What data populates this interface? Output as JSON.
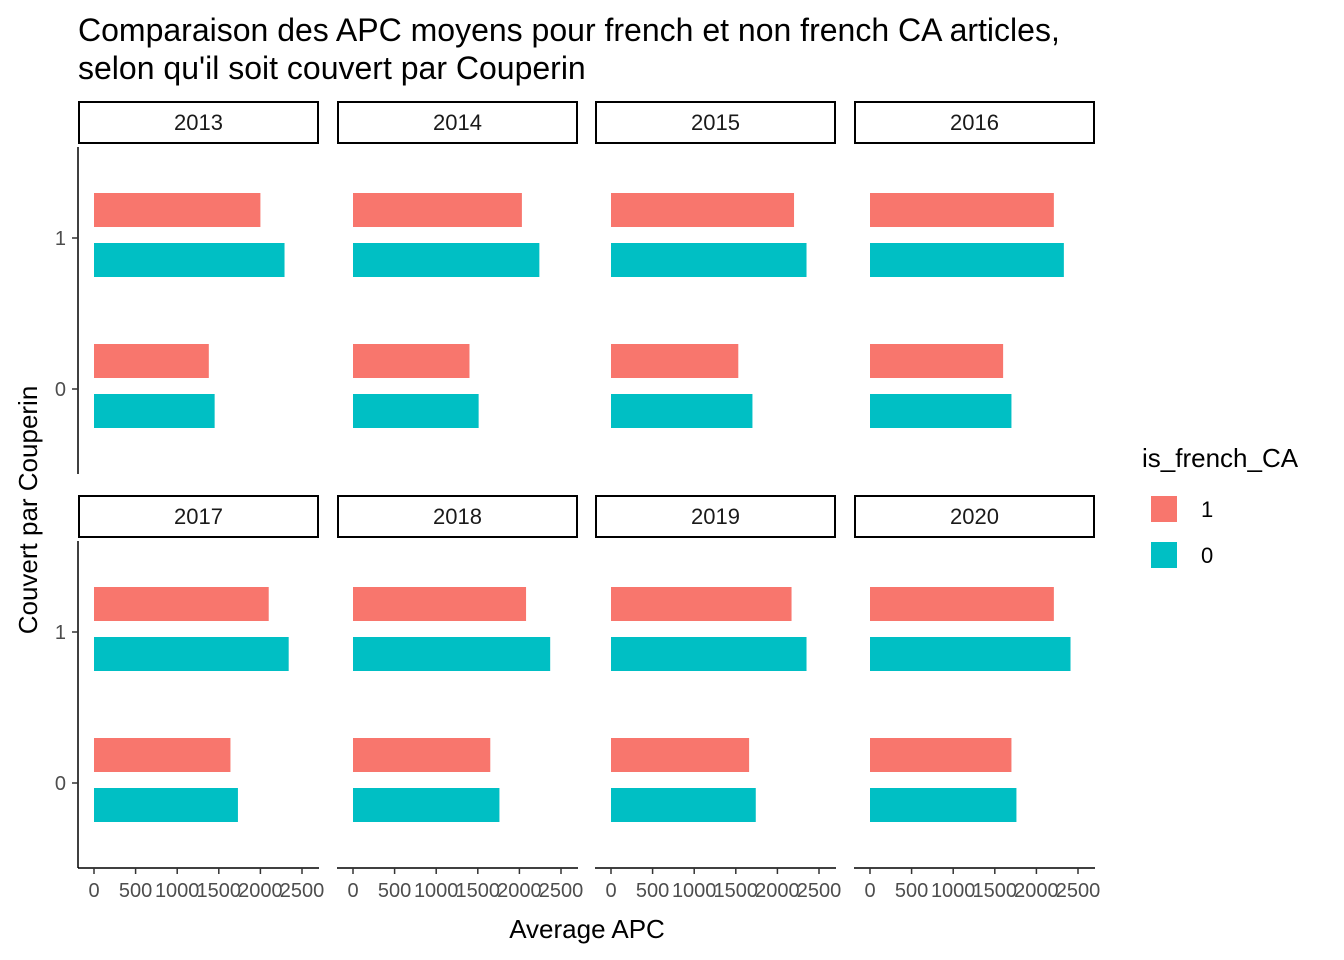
{
  "chart_data": {
    "type": "bar",
    "orientation": "horizontal",
    "title_lines": [
      "Comparaison des APC moyens pour french et non french CA articles,",
      "selon qu'il soit couvert par Couperin"
    ],
    "xlabel": "Average APC",
    "ylabel": "Couvert par Couperin",
    "xlim": [
      0,
      2500
    ],
    "x_ticks": [
      0,
      500,
      1000,
      1500,
      2000,
      2500
    ],
    "categories": [
      "1",
      "0"
    ],
    "legend": {
      "title": "is_french_CA",
      "position": "right",
      "entries": [
        {
          "label": "1",
          "color": "#F8766D"
        },
        {
          "label": "0",
          "color": "#00BFC4"
        }
      ]
    },
    "grid": false,
    "facets": [
      {
        "year": "2013",
        "values": {
          "1": {
            "french_1": 2000,
            "french_0": 2290
          },
          "0": {
            "french_1": 1380,
            "french_0": 1450
          }
        }
      },
      {
        "year": "2014",
        "values": {
          "1": {
            "french_1": 2030,
            "french_0": 2240
          },
          "0": {
            "french_1": 1400,
            "french_0": 1510
          }
        }
      },
      {
        "year": "2015",
        "values": {
          "1": {
            "french_1": 2200,
            "french_0": 2350
          },
          "0": {
            "french_1": 1530,
            "french_0": 1700
          }
        }
      },
      {
        "year": "2016",
        "values": {
          "1": {
            "french_1": 2210,
            "french_0": 2330
          },
          "0": {
            "french_1": 1600,
            "french_0": 1700
          }
        }
      },
      {
        "year": "2017",
        "values": {
          "1": {
            "french_1": 2100,
            "french_0": 2340
          },
          "0": {
            "french_1": 1640,
            "french_0": 1730
          }
        }
      },
      {
        "year": "2018",
        "values": {
          "1": {
            "french_1": 2080,
            "french_0": 2370
          },
          "0": {
            "french_1": 1650,
            "french_0": 1760
          }
        }
      },
      {
        "year": "2019",
        "values": {
          "1": {
            "french_1": 2170,
            "french_0": 2350
          },
          "0": {
            "french_1": 1660,
            "french_0": 1740
          }
        }
      },
      {
        "year": "2020",
        "values": {
          "1": {
            "french_1": 2210,
            "french_0": 2410
          },
          "0": {
            "french_1": 1700,
            "french_0": 1760
          }
        }
      }
    ]
  }
}
